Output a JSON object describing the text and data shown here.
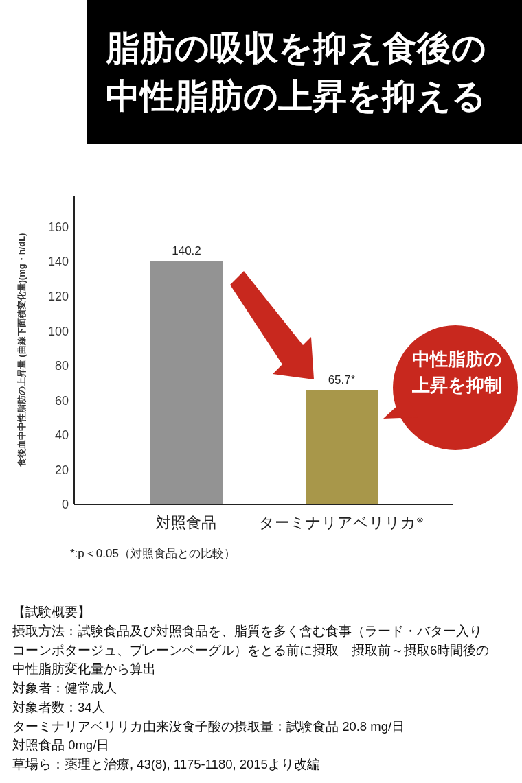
{
  "chart_data": {
    "type": "bar",
    "title": "脂肪の吸収を抑え食後の中性脂肪の上昇を抑える",
    "ylabel": "食後血中中性脂肪の上昇量 (曲線下面積変化量)(mg・h/dL)",
    "categories": [
      "対照食品",
      "ターミナリアベリリカ$^{※}$"
    ],
    "values": [
      140.2,
      65.7
    ],
    "colors": [
      "#939393",
      "#a8974a"
    ],
    "value_labels": [
      "140.2",
      "65.7*"
    ],
    "ylim": [
      0,
      178
    ],
    "yticks": [
      0,
      20,
      40,
      60,
      80,
      100,
      120,
      140,
      160
    ],
    "grid": false,
    "legend": false,
    "annotations": [
      "中性脂肪の上昇を抑制",
      "*:p＜0.05（対照食品との比較）",
      "【試験概要】",
      "摂取方法：試験食品及び対照食品を、脂質を多く含む食事（ラード・バター入りコーンポタージュ、プレーンベーグル）をとる前に摂取　摂取前～摂取6時間後の中性脂肪変化量から算出",
      "対象者：健常成人",
      "対象者数：34人",
      "ターミナリアベリリカ由来没食子酸の摂取量：試験食品 20.8 mg/日",
      "対照食品 0mg/日",
      "草場ら：薬理と治療, 43(8), 1175-1180, 2015より改編"
    ]
  }
}
